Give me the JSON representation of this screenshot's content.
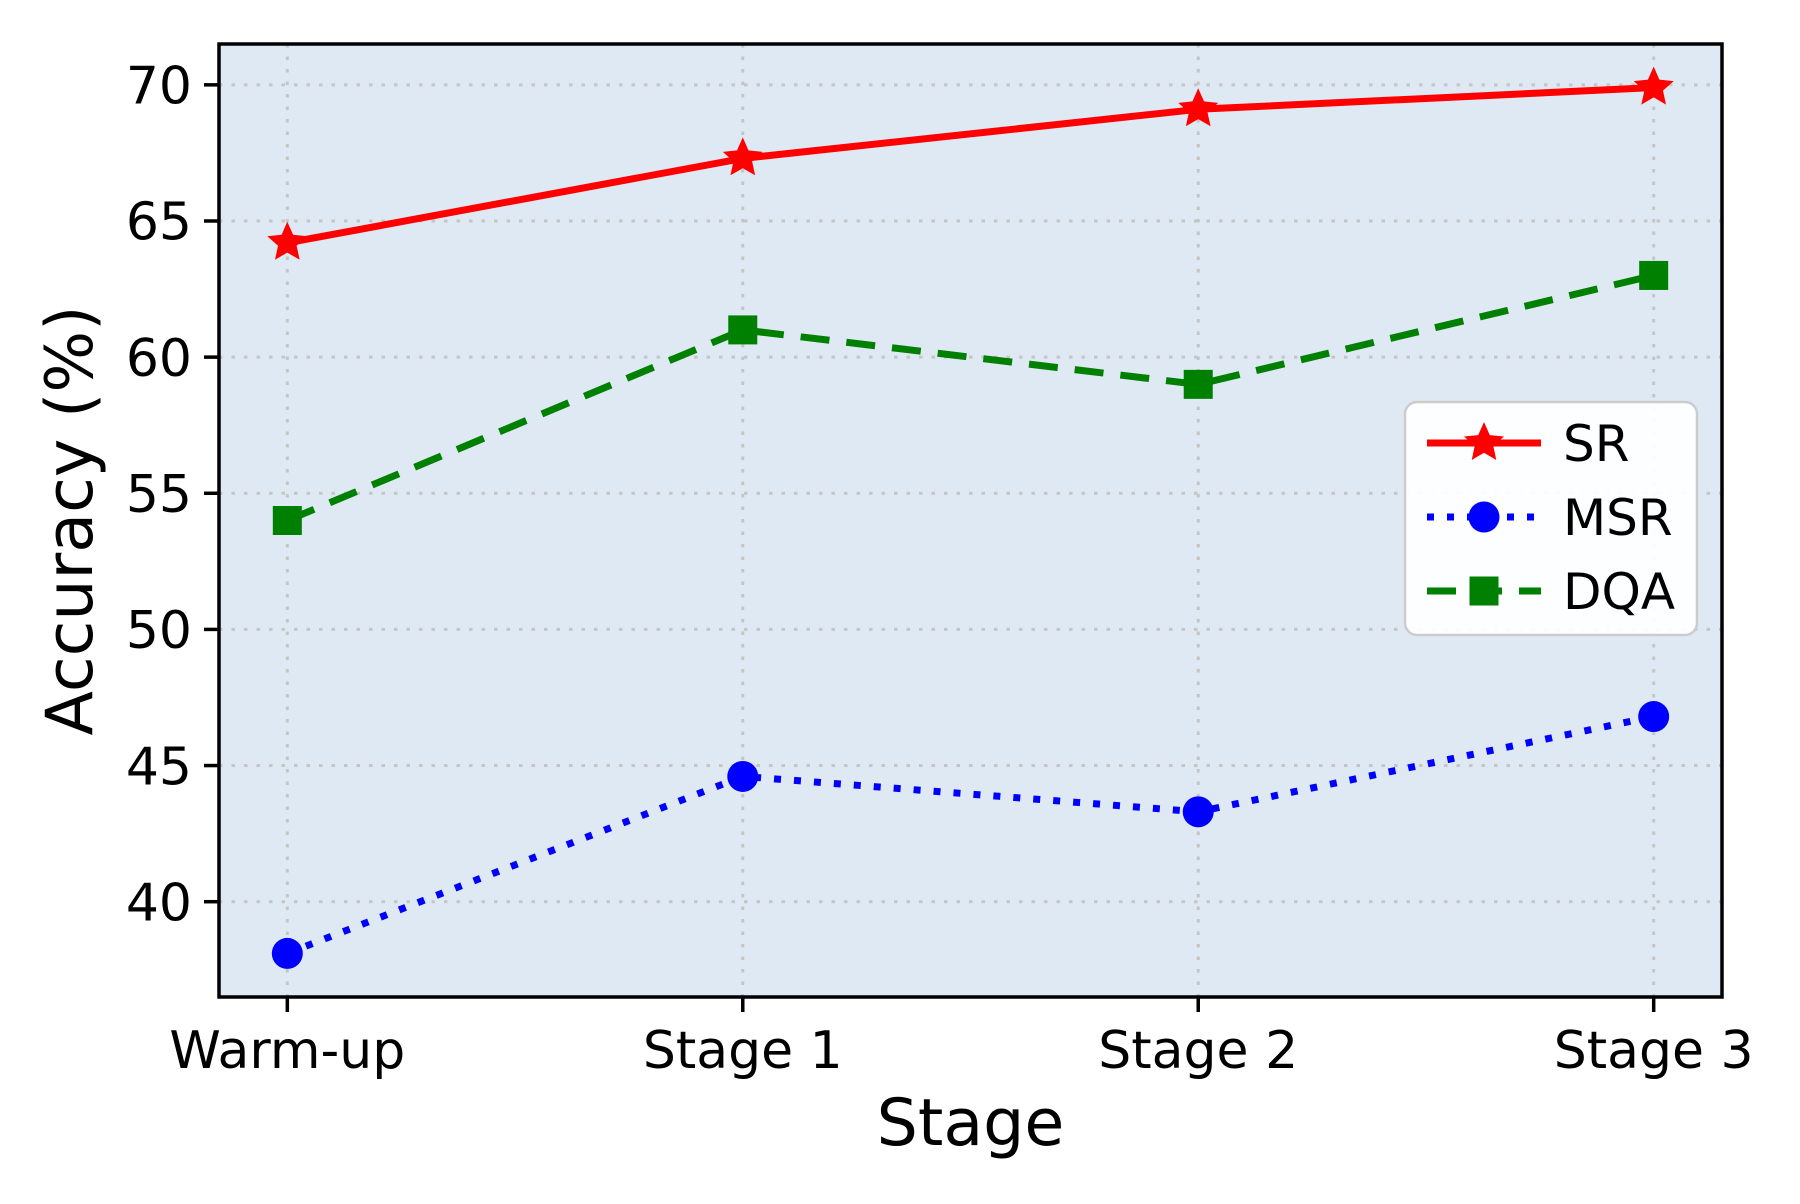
{
  "chart_data": {
    "type": "line",
    "title": "",
    "xlabel": "Stage",
    "ylabel": "Accuracy (%)",
    "categories": [
      "Warm-up",
      "Stage 1",
      "Stage 2",
      "Stage 3"
    ],
    "series": [
      {
        "name": "SR",
        "values": [
          64.2,
          67.3,
          69.1,
          69.9
        ],
        "color": "#ff0000",
        "line_style": "solid",
        "marker": "star"
      },
      {
        "name": "MSR",
        "values": [
          38.1,
          44.6,
          43.3,
          46.8
        ],
        "color": "#0000ff",
        "line_style": "dotted",
        "marker": "circle"
      },
      {
        "name": "DQA",
        "values": [
          54.0,
          61.0,
          59.0,
          63.0
        ],
        "color": "#008000",
        "line_style": "dashed",
        "marker": "square"
      }
    ],
    "ylim": [
      36.5,
      71.5
    ],
    "yticks": [
      40,
      45,
      50,
      55,
      60,
      65,
      70
    ],
    "grid": true,
    "grid_style": "dotted",
    "legend_position": "center-right",
    "legend_entries": [
      "SR",
      "MSR",
      "DQA"
    ],
    "colors": {
      "plot_background": "#dfe9f4",
      "grid_line": "#c5c5c5",
      "spine": "#000000",
      "legend_background": "#ffffff",
      "legend_border": "#cccccc",
      "text": "#000000"
    }
  }
}
